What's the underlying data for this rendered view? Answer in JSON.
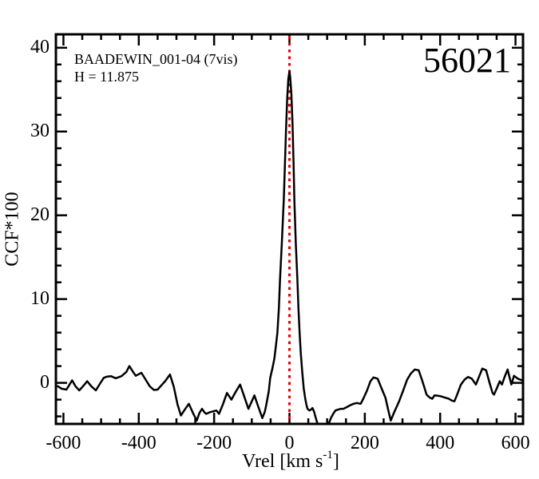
{
  "figure": {
    "annotations": {
      "target": "BAADEWIN_001-04 (7vis)",
      "h_mag": "H = 11.875",
      "epoch": "56021"
    },
    "axes": {
      "xlabel_prefix": "Vrel [km s",
      "xlabel_sup": "-1",
      "xlabel_suffix": "]",
      "ylabel": "CCF*100"
    }
  },
  "chart_data": {
    "type": "line",
    "title": "",
    "xlabel": "Vrel [km s^-1]",
    "ylabel": "CCF*100",
    "xlim": [
      -620,
      620
    ],
    "ylim": [
      -4.9,
      41.6
    ],
    "grid": false,
    "x_major_ticks": [
      -600,
      -400,
      -200,
      0,
      200,
      400,
      600
    ],
    "x_tick_labels": [
      "-600",
      "-400",
      "-200",
      "0",
      "200",
      "400",
      "600"
    ],
    "x_minor_step": 50,
    "y_major_ticks": [
      0,
      10,
      20,
      30,
      40
    ],
    "y_tick_labels": [
      "0",
      "10",
      "20",
      "30",
      "40"
    ],
    "y_minor_step": 2,
    "line_color": "#000000",
    "marker_line": {
      "x": 0,
      "color": "#ee0000",
      "style": "dotted"
    },
    "peak": {
      "x": 0,
      "y": 37.2
    },
    "series": [
      {
        "name": "CCF",
        "points": [
          [
            -615,
            -0.4
          ],
          [
            -605,
            -0.7
          ],
          [
            -592,
            -0.8
          ],
          [
            -585,
            -0.3
          ],
          [
            -577,
            0.3
          ],
          [
            -568,
            -0.4
          ],
          [
            -558,
            -0.9
          ],
          [
            -548,
            -0.4
          ],
          [
            -537,
            0.2
          ],
          [
            -526,
            -0.4
          ],
          [
            -514,
            -0.9
          ],
          [
            -503,
            -0.1
          ],
          [
            -493,
            0.6
          ],
          [
            -484,
            0.75
          ],
          [
            -474,
            0.8
          ],
          [
            -461,
            0.55
          ],
          [
            -446,
            0.8
          ],
          [
            -433,
            1.3
          ],
          [
            -425,
            2.0
          ],
          [
            -415,
            1.3
          ],
          [
            -408,
            0.85
          ],
          [
            -393,
            1.2
          ],
          [
            -382,
            0.4
          ],
          [
            -371,
            -0.4
          ],
          [
            -360,
            -0.85
          ],
          [
            -350,
            -0.8
          ],
          [
            -340,
            -0.3
          ],
          [
            -330,
            0.2
          ],
          [
            -317,
            1.0
          ],
          [
            -307,
            -0.5
          ],
          [
            -297,
            -2.6
          ],
          [
            -288,
            -3.9
          ],
          [
            -278,
            -3.2
          ],
          [
            -267,
            -2.5
          ],
          [
            -256,
            -3.6
          ],
          [
            -246,
            -4.5
          ],
          [
            -239,
            -3.6
          ],
          [
            -232,
            -3.1
          ],
          [
            -226,
            -3.5
          ],
          [
            -221,
            -3.7
          ],
          [
            -211,
            -3.5
          ],
          [
            -203,
            -3.4
          ],
          [
            -194,
            -3.3
          ],
          [
            -187,
            -3.7
          ],
          [
            -177,
            -2.6
          ],
          [
            -166,
            -1.2
          ],
          [
            -160,
            -1.6
          ],
          [
            -154,
            -2.0
          ],
          [
            -143,
            -1.1
          ],
          [
            -131,
            -0.2
          ],
          [
            -121,
            -1.5
          ],
          [
            -109,
            -3.1
          ],
          [
            -101,
            -2.3
          ],
          [
            -93,
            -1.5
          ],
          [
            -83,
            -2.8
          ],
          [
            -72,
            -4.2
          ],
          [
            -65,
            -3.4
          ],
          [
            -61,
            -2.5
          ],
          [
            -55,
            -1.0
          ],
          [
            -51,
            0.6
          ],
          [
            -45,
            1.8
          ],
          [
            -40,
            2.9
          ],
          [
            -36,
            4.4
          ],
          [
            -32,
            6.0
          ],
          [
            -28,
            9.0
          ],
          [
            -25,
            12.4
          ],
          [
            -20,
            17.0
          ],
          [
            -15,
            21.9
          ],
          [
            -12,
            26.0
          ],
          [
            -9,
            30.5
          ],
          [
            -6,
            34.0
          ],
          [
            -3,
            36.3
          ],
          [
            0,
            37.2
          ],
          [
            2,
            36.5
          ],
          [
            5,
            34.5
          ],
          [
            8,
            31.0
          ],
          [
            11,
            26.0
          ],
          [
            13,
            21.9
          ],
          [
            17,
            16.5
          ],
          [
            21,
            12.4
          ],
          [
            24,
            8.8
          ],
          [
            27,
            6.0
          ],
          [
            30,
            3.5
          ],
          [
            34,
            1.3
          ],
          [
            38,
            -0.7
          ],
          [
            42,
            -1.9
          ],
          [
            45,
            -2.6
          ],
          [
            48,
            -3.1
          ],
          [
            53,
            -3.3
          ],
          [
            57,
            -3.2
          ],
          [
            61,
            -3.0
          ],
          [
            65,
            -3.4
          ],
          [
            70,
            -4.2
          ],
          [
            74,
            -4.8
          ],
          [
            80,
            -5.6
          ],
          [
            88,
            -6.0
          ],
          [
            96,
            -5.6
          ],
          [
            102,
            -5.0
          ],
          [
            105,
            -4.8
          ],
          [
            110,
            -4.2
          ],
          [
            116,
            -3.7
          ],
          [
            122,
            -3.3
          ],
          [
            128,
            -3.2
          ],
          [
            136,
            -3.1
          ],
          [
            143,
            -3.1
          ],
          [
            152,
            -2.9
          ],
          [
            160,
            -2.7
          ],
          [
            170,
            -2.5
          ],
          [
            179,
            -2.4
          ],
          [
            184,
            -2.45
          ],
          [
            189,
            -2.5
          ],
          [
            197,
            -1.8
          ],
          [
            206,
            -0.9
          ],
          [
            215,
            0.2
          ],
          [
            223,
            0.65
          ],
          [
            234,
            0.5
          ],
          [
            244,
            -0.6
          ],
          [
            255,
            -1.8
          ],
          [
            262,
            -3.2
          ],
          [
            269,
            -4.5
          ],
          [
            277,
            -3.6
          ],
          [
            291,
            -2.2
          ],
          [
            302,
            -0.9
          ],
          [
            312,
            0.35
          ],
          [
            322,
            1.1
          ],
          [
            333,
            1.6
          ],
          [
            343,
            1.5
          ],
          [
            353,
            0.2
          ],
          [
            364,
            -1.4
          ],
          [
            372,
            -1.75
          ],
          [
            379,
            -1.9
          ],
          [
            385,
            -1.5
          ],
          [
            395,
            -1.55
          ],
          [
            402,
            -1.6
          ],
          [
            412,
            -1.75
          ],
          [
            423,
            -1.9
          ],
          [
            430,
            -2.1
          ],
          [
            438,
            -2.2
          ],
          [
            446,
            -1.3
          ],
          [
            455,
            -0.2
          ],
          [
            465,
            0.4
          ],
          [
            474,
            0.7
          ],
          [
            484,
            0.5
          ],
          [
            495,
            -0.2
          ],
          [
            503,
            0.7
          ],
          [
            512,
            1.7
          ],
          [
            522,
            1.5
          ],
          [
            530,
            0.2
          ],
          [
            539,
            -1.2
          ],
          [
            543,
            -1.4
          ],
          [
            551,
            -0.6
          ],
          [
            558,
            0.2
          ],
          [
            564,
            -0.2
          ],
          [
            571,
            0.7
          ],
          [
            579,
            1.6
          ],
          [
            584,
            0.7
          ],
          [
            589,
            -0.2
          ],
          [
            596,
            0.85
          ],
          [
            606,
            0.5
          ],
          [
            617,
            0.3
          ]
        ]
      }
    ]
  }
}
